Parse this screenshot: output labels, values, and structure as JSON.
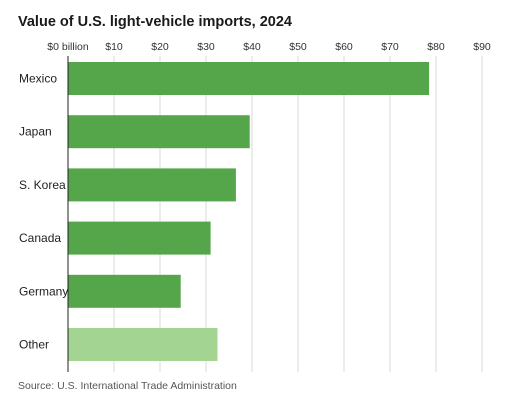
{
  "chart_data": {
    "type": "bar",
    "orientation": "horizontal",
    "title": "Value of U.S. light-vehicle imports, 2024",
    "xlabel": "",
    "ylabel": "",
    "x_tick_labels": [
      "$0 billion",
      "$10",
      "$20",
      "$30",
      "$40",
      "$50",
      "$60",
      "$70",
      "$80",
      "$90"
    ],
    "xlim": [
      0,
      90
    ],
    "grid": true,
    "categories": [
      "Mexico",
      "Japan",
      "S. Korea",
      "Canada",
      "Germany",
      "Other"
    ],
    "values": [
      78.5,
      39.5,
      36.5,
      31,
      24.5,
      32.5
    ],
    "colors": [
      "#55a64a",
      "#55a64a",
      "#55a64a",
      "#55a64a",
      "#55a64a",
      "#a3d491"
    ],
    "source": "Source: U.S. International Trade Administration"
  }
}
